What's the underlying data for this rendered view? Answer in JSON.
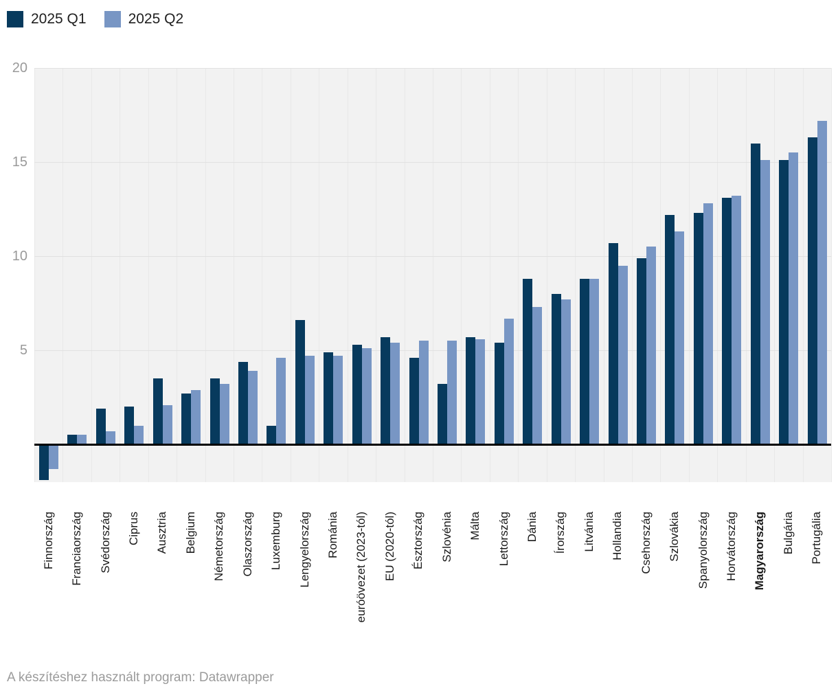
{
  "legend": {
    "items": [
      {
        "label": "2025 Q1",
        "color": "#073a5d"
      },
      {
        "label": "2025 Q2",
        "color": "#7896c4"
      }
    ]
  },
  "footer": {
    "text": "A készítéshez használt program: Datawrapper"
  },
  "chart_data": {
    "type": "bar",
    "title": "",
    "categories": [
      "Finnország",
      "Franciaország",
      "Svédország",
      "Ciprus",
      "Ausztria",
      "Belgium",
      "Németország",
      "Olaszország",
      "Luxemburg",
      "Lengyelország",
      "Románia",
      "euróövezet (2023-tól)",
      "EU (2020-tól)",
      "Észtország",
      "Szlovénia",
      "Málta",
      "Lettország",
      "Dánia",
      "Írország",
      "Litvánia",
      "Hollandia",
      "Csehország",
      "Szlovákia",
      "Spanyolország",
      "Horvátország",
      "Magyarország",
      "Bulgária",
      "Portugália"
    ],
    "bold_category": "Magyarország",
    "series": [
      {
        "name": "2025 Q1",
        "color": "#073a5d",
        "values": [
          -1.9,
          0.5,
          1.9,
          2.0,
          3.5,
          2.7,
          3.5,
          4.4,
          1.0,
          6.6,
          4.9,
          5.3,
          5.7,
          4.6,
          3.2,
          5.7,
          5.4,
          8.8,
          8.0,
          8.8,
          10.7,
          9.9,
          12.2,
          12.3,
          13.1,
          16.0,
          15.1,
          16.3
        ]
      },
      {
        "name": "2025 Q2",
        "color": "#7896c4",
        "values": [
          -1.3,
          0.5,
          0.7,
          1.0,
          2.1,
          2.9,
          3.2,
          3.9,
          4.6,
          4.7,
          4.7,
          5.1,
          5.4,
          5.5,
          5.5,
          5.6,
          6.7,
          7.3,
          7.7,
          8.8,
          9.5,
          10.5,
          11.3,
          12.8,
          13.2,
          15.1,
          15.5,
          17.2
        ]
      }
    ],
    "xlabel": "",
    "ylabel": "",
    "ylim": [
      -2,
      20
    ],
    "yticks": [
      5,
      10,
      15,
      20
    ],
    "grid": true,
    "legend_position": "top-left",
    "plot_background": "#f2f2f2",
    "zero_line_color": "#000000"
  }
}
